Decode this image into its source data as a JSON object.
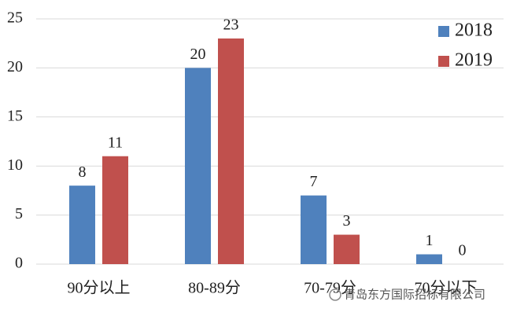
{
  "chart_data": {
    "type": "bar",
    "categories": [
      "90分以上",
      "80-89分",
      "70-79分",
      "70分以下"
    ],
    "series": [
      {
        "name": "2018",
        "color": "#4f81bd",
        "values": [
          8,
          20,
          7,
          1
        ]
      },
      {
        "name": "2019",
        "color": "#c0504d",
        "values": [
          11,
          23,
          3,
          0
        ]
      }
    ],
    "ylim": [
      0,
      25
    ],
    "yticks": [
      0,
      5,
      10,
      15,
      20,
      25
    ],
    "grid": true,
    "legend": "top-right",
    "watermark": "青岛东方国际招标有限公司"
  }
}
